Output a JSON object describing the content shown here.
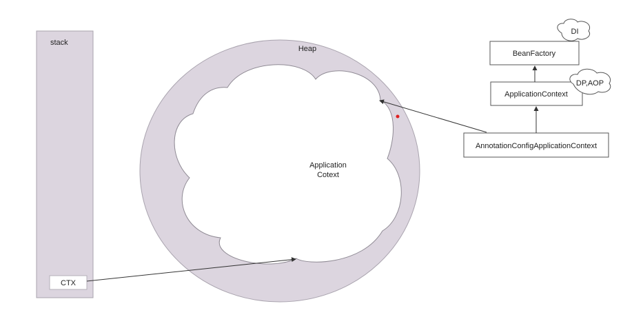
{
  "stack": {
    "label": "stack",
    "ctx_label": "CTX"
  },
  "heap": {
    "label": "Heap",
    "context_line1": "Application",
    "context_line2": "Cotext"
  },
  "hierarchy": {
    "bean_factory": "BeanFactory",
    "di_cloud": "DI",
    "application_context": "ApplicationContext",
    "dp_aop_cloud": "DP,AOP",
    "annotation_config": "AnnotationConfigApplicationContext"
  },
  "colors": {
    "region_fill": "#dcd5df",
    "region_stroke": "#a9a3ae",
    "line": "#333333",
    "marker": "#e02020"
  }
}
